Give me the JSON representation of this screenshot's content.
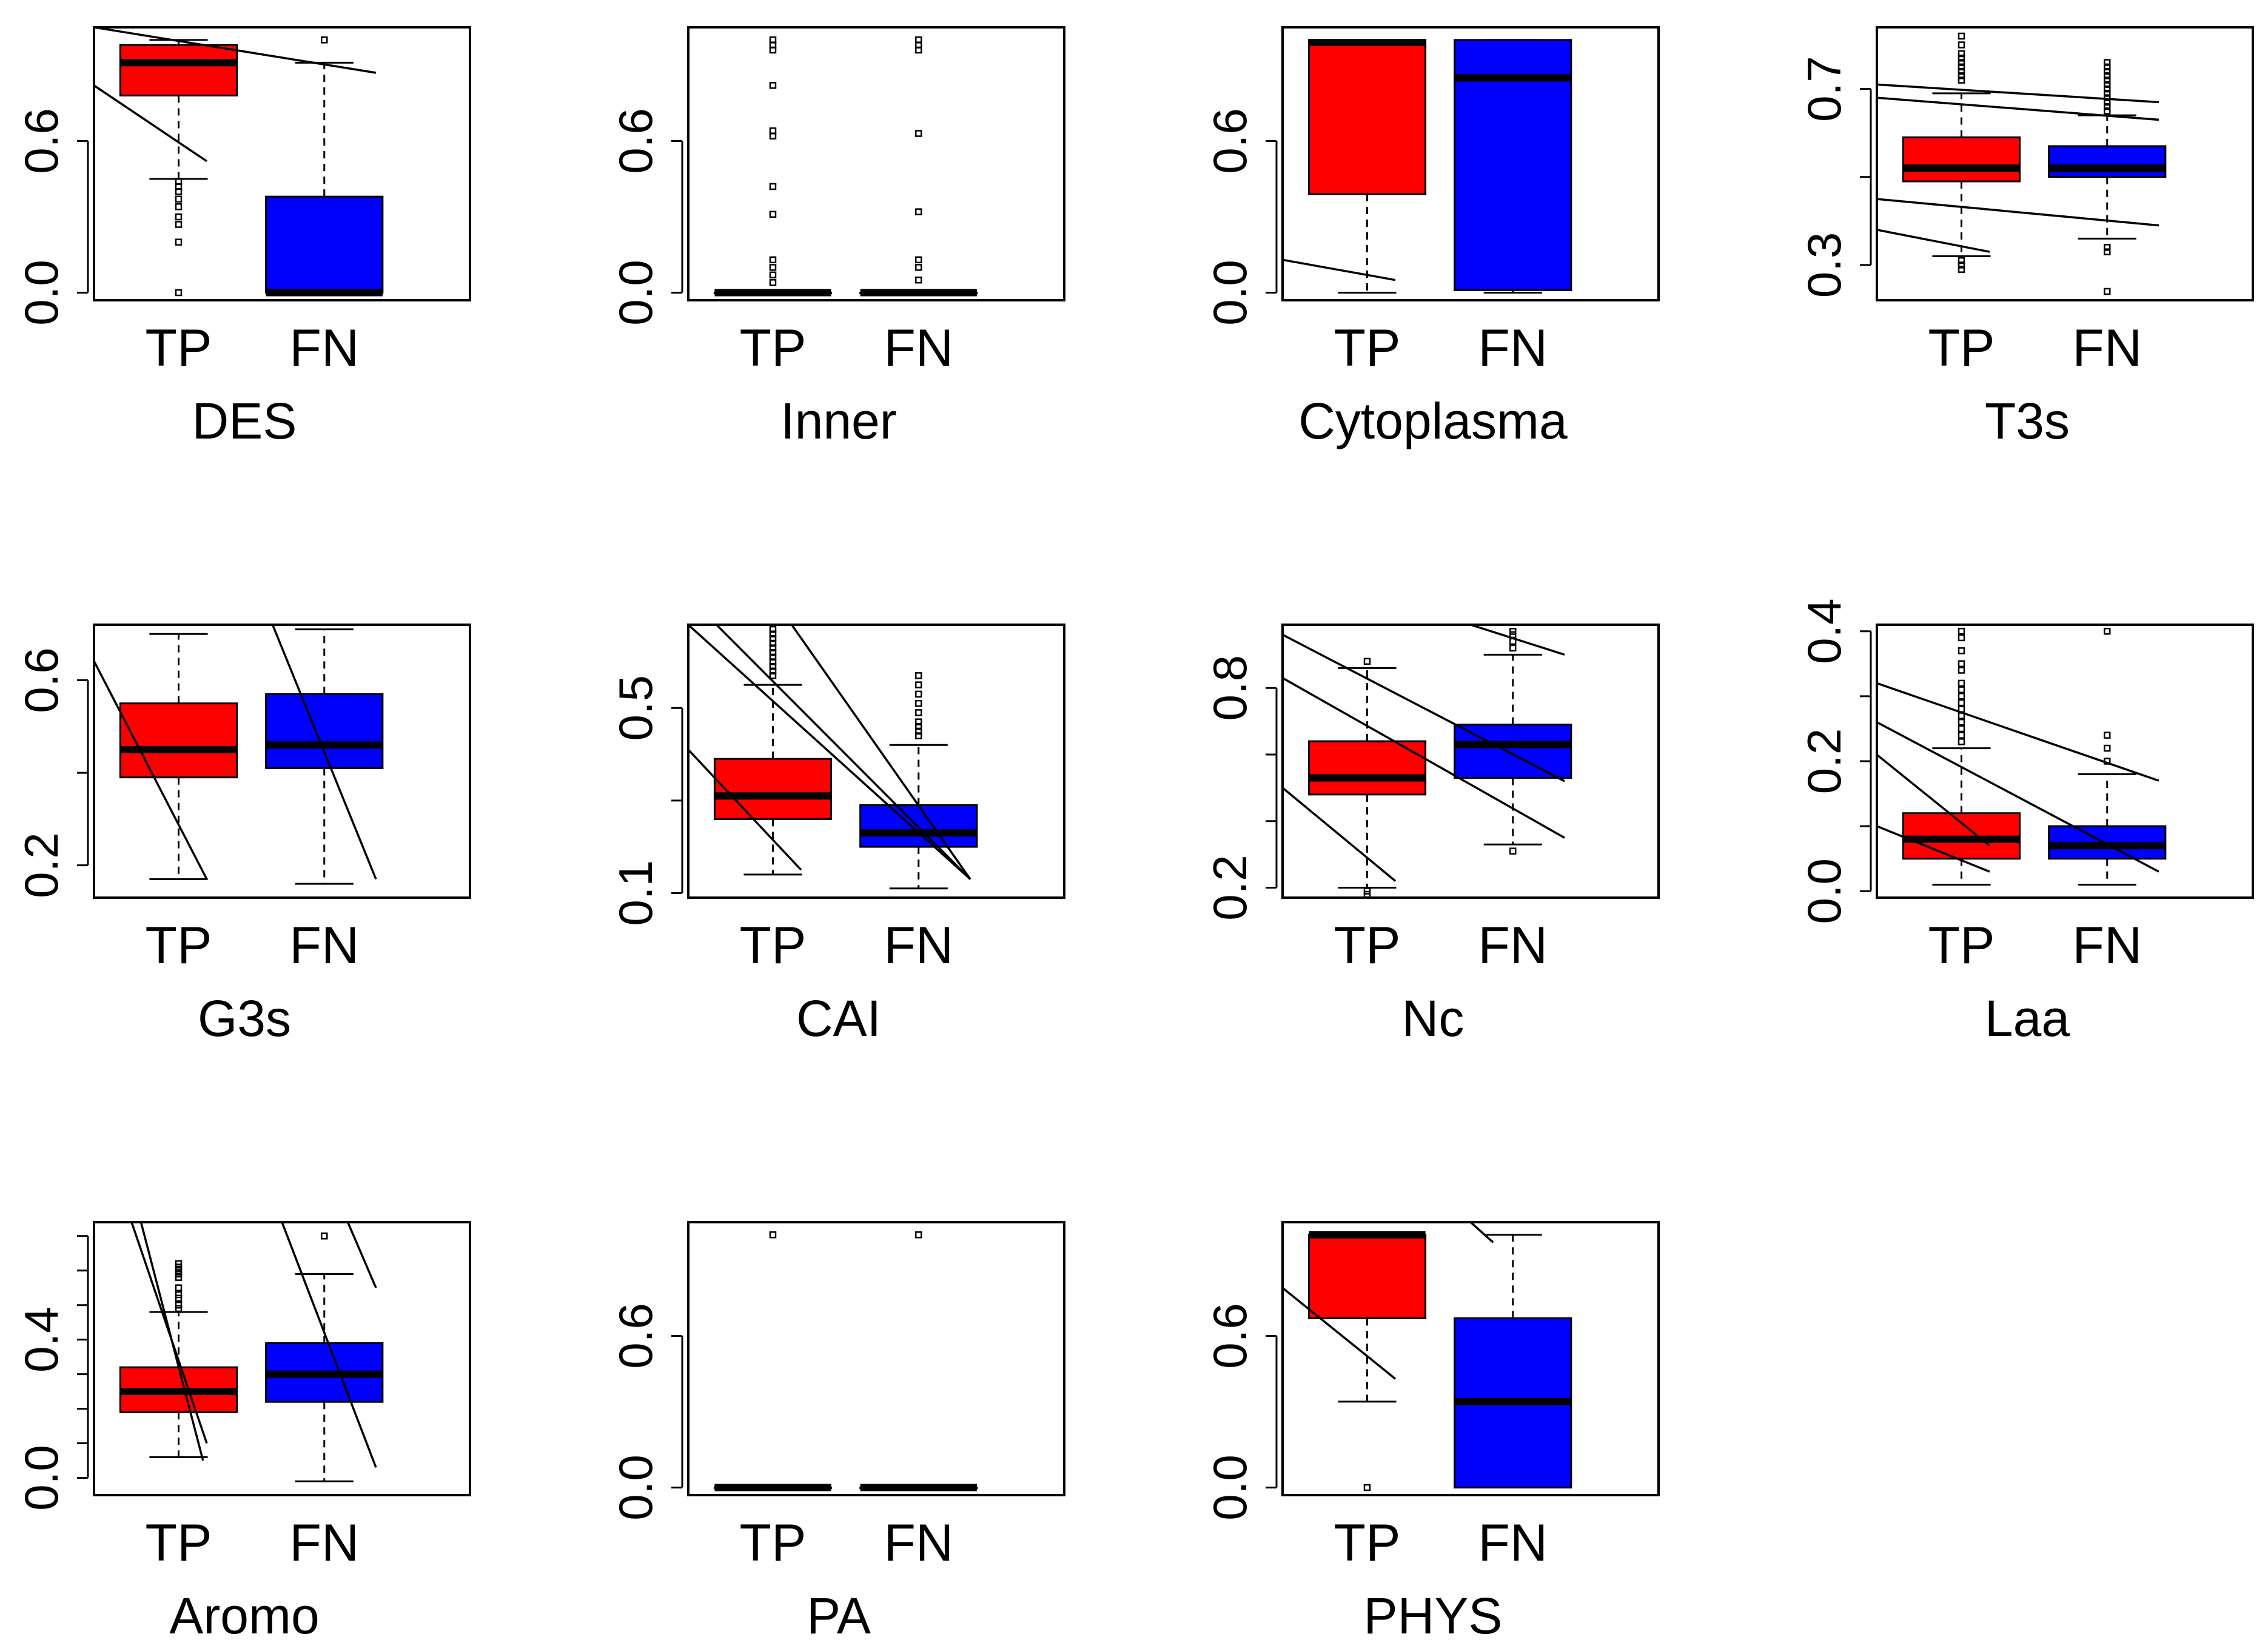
{
  "colors": {
    "tp_fill": "#ff0000",
    "fn_fill": "#0000ff",
    "stroke": "#000000",
    "background": "#ffffff"
  },
  "chart_data": [
    {
      "type": "box",
      "title": "DES",
      "categories": [
        "TP",
        "FN"
      ],
      "ylim": [
        -0.03,
        1.05
      ],
      "yticks": [
        0.0,
        0.6
      ],
      "ytick_labels": [
        "0.0",
        "0.6"
      ],
      "boxes": [
        {
          "name": "TP",
          "whisker_low": 0.45,
          "q1": 0.78,
          "median": 0.91,
          "q3": 0.98,
          "whisker_high": 1.0,
          "outliers": [
            0.44,
            0.42,
            0.4,
            0.37,
            0.34,
            0.3,
            0.27,
            0.2,
            0.0
          ]
        },
        {
          "name": "FN",
          "whisker_low": 0.0,
          "q1": 0.0,
          "median": 0.0,
          "q3": 0.38,
          "whisker_high": 0.91,
          "outliers": [
            1.0
          ]
        }
      ],
      "trend_lines": [
        [
          0.0,
          1.05,
          1.5,
          0.87
        ],
        [
          0.0,
          0.82,
          0.6,
          0.52
        ]
      ]
    },
    {
      "type": "box",
      "title": "Inner",
      "categories": [
        "TP",
        "FN"
      ],
      "ylim": [
        -0.03,
        1.05
      ],
      "yticks": [
        0.0,
        0.6
      ],
      "ytick_labels": [
        "0.0",
        "0.6"
      ],
      "boxes": [
        {
          "name": "TP",
          "whisker_low": 0.0,
          "q1": 0.0,
          "median": 0.0,
          "q3": 0.0,
          "whisker_high": 0.0,
          "outliers": [
            1.0,
            0.98,
            0.96,
            0.82,
            0.64,
            0.62,
            0.42,
            0.31,
            0.13,
            0.1,
            0.07,
            0.04
          ]
        },
        {
          "name": "FN",
          "whisker_low": 0.0,
          "q1": 0.0,
          "median": 0.0,
          "q3": 0.0,
          "whisker_high": 0.0,
          "outliers": [
            1.0,
            0.98,
            0.96,
            0.63,
            0.32,
            0.13,
            0.1,
            0.05
          ]
        }
      ],
      "trend_lines": []
    },
    {
      "type": "box",
      "title": "Cytoplasma",
      "categories": [
        "TP",
        "FN"
      ],
      "ylim": [
        -0.03,
        1.05
      ],
      "yticks": [
        0.0,
        0.6
      ],
      "ytick_labels": [
        "0.0",
        "0.6"
      ],
      "boxes": [
        {
          "name": "TP",
          "whisker_low": 0.0,
          "q1": 0.39,
          "median": 0.99,
          "q3": 1.0,
          "whisker_high": 1.0,
          "outliers": []
        },
        {
          "name": "FN",
          "whisker_low": 0.0,
          "q1": 0.01,
          "median": 0.85,
          "q3": 1.0,
          "whisker_high": 1.0,
          "outliers": []
        }
      ],
      "trend_lines": [
        [
          0.0,
          0.13,
          0.6,
          0.05
        ]
      ]
    },
    {
      "type": "box",
      "title": "T3s",
      "categories": [
        "TP",
        "FN"
      ],
      "ylim": [
        0.22,
        0.84
      ],
      "yticks": [
        0.3,
        0.5,
        0.7
      ],
      "ytick_labels": [
        "0.3",
        "",
        "0.7"
      ],
      "boxes": [
        {
          "name": "TP",
          "whisker_low": 0.32,
          "q1": 0.49,
          "median": 0.52,
          "q3": 0.59,
          "whisker_high": 0.69,
          "outliers": [
            0.82,
            0.8,
            0.78,
            0.77,
            0.76,
            0.75,
            0.74,
            0.73,
            0.72,
            0.31,
            0.3,
            0.29
          ]
        },
        {
          "name": "FN",
          "whisker_low": 0.36,
          "q1": 0.5,
          "median": 0.52,
          "q3": 0.57,
          "whisker_high": 0.64,
          "outliers": [
            0.76,
            0.75,
            0.74,
            0.73,
            0.72,
            0.71,
            0.7,
            0.69,
            0.68,
            0.67,
            0.66,
            0.65,
            0.34,
            0.33,
            0.24
          ]
        }
      ],
      "trend_lines": [
        [
          0.0,
          0.71,
          1.5,
          0.67
        ],
        [
          0.0,
          0.68,
          1.5,
          0.63
        ],
        [
          0.0,
          0.45,
          1.5,
          0.39
        ],
        [
          0.0,
          0.38,
          0.6,
          0.33
        ]
      ]
    },
    {
      "type": "box",
      "title": "G3s",
      "categories": [
        "TP",
        "FN"
      ],
      "ylim": [
        0.13,
        0.72
      ],
      "yticks": [
        0.2,
        0.4,
        0.6
      ],
      "ytick_labels": [
        "0.2",
        "",
        "0.6"
      ],
      "boxes": [
        {
          "name": "TP",
          "whisker_low": 0.17,
          "q1": 0.39,
          "median": 0.45,
          "q3": 0.55,
          "whisker_high": 0.7,
          "outliers": []
        },
        {
          "name": "FN",
          "whisker_low": 0.16,
          "q1": 0.41,
          "median": 0.46,
          "q3": 0.57,
          "whisker_high": 0.71,
          "outliers": []
        }
      ],
      "trend_lines": [
        [
          -0.1,
          0.72,
          0.6,
          0.17
        ],
        [
          0.95,
          0.72,
          1.5,
          0.17
        ]
      ]
    },
    {
      "type": "box",
      "title": "CAI",
      "categories": [
        "TP",
        "FN"
      ],
      "ylim": [
        0.09,
        0.68
      ],
      "yticks": [
        0.1,
        0.3,
        0.5
      ],
      "ytick_labels": [
        "0.1",
        "",
        "0.5"
      ],
      "boxes": [
        {
          "name": "TP",
          "whisker_low": 0.14,
          "q1": 0.26,
          "median": 0.31,
          "q3": 0.39,
          "whisker_high": 0.55,
          "outliers": [
            0.67,
            0.66,
            0.65,
            0.64,
            0.63,
            0.62,
            0.61,
            0.6,
            0.59,
            0.58,
            0.57
          ]
        },
        {
          "name": "FN",
          "whisker_low": 0.11,
          "q1": 0.2,
          "median": 0.23,
          "q3": 0.29,
          "whisker_high": 0.42,
          "outliers": [
            0.57,
            0.55,
            0.53,
            0.51,
            0.49,
            0.47,
            0.46,
            0.45,
            0.44
          ]
        }
      ],
      "trend_lines": [
        [
          0.0,
          0.68,
          1.5,
          0.13
        ],
        [
          0.15,
          0.68,
          1.5,
          0.13
        ],
        [
          0.55,
          0.68,
          1.5,
          0.13
        ],
        [
          0.0,
          0.41,
          0.6,
          0.15
        ]
      ]
    },
    {
      "type": "box",
      "title": "Nc",
      "categories": [
        "TP",
        "FN"
      ],
      "ylim": [
        0.17,
        0.99
      ],
      "yticks": [
        0.2,
        0.4,
        0.6,
        0.8
      ],
      "ytick_labels": [
        "0.2",
        "",
        "",
        "0.8"
      ],
      "boxes": [
        {
          "name": "TP",
          "whisker_low": 0.2,
          "q1": 0.48,
          "median": 0.53,
          "q3": 0.64,
          "whisker_high": 0.86,
          "outliers": [
            0.88,
            0.19,
            0.18
          ]
        },
        {
          "name": "FN",
          "whisker_low": 0.33,
          "q1": 0.53,
          "median": 0.63,
          "q3": 0.69,
          "whisker_high": 0.9,
          "outliers": [
            0.97,
            0.96,
            0.94,
            0.92,
            0.31
          ]
        }
      ],
      "trend_lines": [
        [
          0.0,
          0.96,
          1.5,
          0.52
        ],
        [
          0.0,
          0.83,
          1.5,
          0.35
        ],
        [
          0.0,
          0.5,
          0.6,
          0.22
        ],
        [
          1.0,
          0.99,
          1.5,
          0.9
        ]
      ]
    },
    {
      "type": "box",
      "title": "Laa",
      "categories": [
        "TP",
        "FN"
      ],
      "ylim": [
        -0.01,
        0.41
      ],
      "yticks": [
        0.0,
        0.1,
        0.2,
        0.3,
        0.4
      ],
      "ytick_labels": [
        "0.0",
        "",
        "0.2",
        "",
        "0.4"
      ],
      "boxes": [
        {
          "name": "TP",
          "whisker_low": 0.01,
          "q1": 0.05,
          "median": 0.08,
          "q3": 0.12,
          "whisker_high": 0.22,
          "outliers": [
            0.4,
            0.39,
            0.37,
            0.35,
            0.34,
            0.32,
            0.31,
            0.3,
            0.29,
            0.28,
            0.27,
            0.26,
            0.25,
            0.24,
            0.23
          ]
        },
        {
          "name": "FN",
          "whisker_low": 0.01,
          "q1": 0.05,
          "median": 0.07,
          "q3": 0.1,
          "whisker_high": 0.18,
          "outliers": [
            0.4,
            0.24,
            0.22,
            0.2
          ]
        }
      ],
      "trend_lines": [
        [
          0.0,
          0.32,
          1.5,
          0.17
        ],
        [
          0.0,
          0.26,
          1.5,
          0.03
        ],
        [
          0.0,
          0.21,
          0.6,
          0.07
        ],
        [
          0.0,
          0.1,
          0.6,
          0.03
        ]
      ]
    },
    {
      "type": "box",
      "title": "Aromo",
      "categories": [
        "TP",
        "FN"
      ],
      "ylim": [
        -0.05,
        0.74
      ],
      "yticks": [
        0.0,
        0.1,
        0.2,
        0.3,
        0.4,
        0.5,
        0.6,
        0.7
      ],
      "ytick_labels": [
        "0.0",
        "",
        "",
        "",
        "0.4",
        "",
        "",
        ""
      ],
      "boxes": [
        {
          "name": "TP",
          "whisker_low": 0.06,
          "q1": 0.19,
          "median": 0.25,
          "q3": 0.32,
          "whisker_high": 0.48,
          "outliers": [
            0.62,
            0.61,
            0.6,
            0.59,
            0.58,
            0.55,
            0.53,
            0.52,
            0.5,
            0.49
          ]
        },
        {
          "name": "FN",
          "whisker_low": -0.01,
          "q1": 0.22,
          "median": 0.3,
          "q3": 0.39,
          "whisker_high": 0.59,
          "outliers": [
            0.7
          ]
        }
      ],
      "trend_lines": [
        [
          0.2,
          0.74,
          0.6,
          0.1
        ],
        [
          0.25,
          0.74,
          0.58,
          0.05
        ],
        [
          1.0,
          0.74,
          1.5,
          0.03
        ],
        [
          1.35,
          0.74,
          1.5,
          0.55
        ]
      ]
    },
    {
      "type": "box",
      "title": "PA",
      "categories": [
        "TP",
        "FN"
      ],
      "ylim": [
        -0.03,
        1.05
      ],
      "yticks": [
        0.0,
        0.6
      ],
      "ytick_labels": [
        "0.0",
        "0.6"
      ],
      "boxes": [
        {
          "name": "TP",
          "whisker_low": 0.0,
          "q1": 0.0,
          "median": 0.0,
          "q3": 0.0,
          "whisker_high": 0.0,
          "outliers": [
            1.0
          ]
        },
        {
          "name": "FN",
          "whisker_low": 0.0,
          "q1": 0.0,
          "median": 0.0,
          "q3": 0.0,
          "whisker_high": 0.0,
          "outliers": [
            1.0
          ]
        }
      ],
      "trend_lines": []
    },
    {
      "type": "box",
      "title": "PHYS",
      "categories": [
        "TP",
        "FN"
      ],
      "ylim": [
        -0.03,
        1.05
      ],
      "yticks": [
        0.0,
        0.6
      ],
      "ytick_labels": [
        "0.0",
        "0.6"
      ],
      "boxes": [
        {
          "name": "TP",
          "whisker_low": 0.34,
          "q1": 0.67,
          "median": 1.0,
          "q3": 1.0,
          "whisker_high": 1.0,
          "outliers": [
            0.0
          ]
        },
        {
          "name": "FN",
          "whisker_low": 0.0,
          "q1": 0.0,
          "median": 0.34,
          "q3": 0.67,
          "whisker_high": 1.0,
          "outliers": []
        }
      ],
      "trend_lines": [
        [
          0.0,
          0.79,
          0.6,
          0.43
        ],
        [
          1.0,
          1.05,
          1.12,
          0.97
        ]
      ]
    }
  ]
}
